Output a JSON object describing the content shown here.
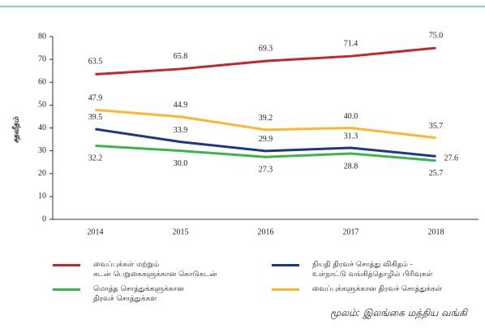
{
  "chart_data": {
    "type": "line",
    "y_label": "சதவீதம்",
    "categories": [
      "2014",
      "2015",
      "2016",
      "2017",
      "2018"
    ],
    "series": [
      {
        "name": "வைப்புக்கள் மற்றும்\nகடன் பெறுகைகளுக்கான கொடுகடன்",
        "color": "#c1272d",
        "values": [
          63.5,
          65.8,
          69.3,
          71.4,
          75.0
        ],
        "value_labels": [
          "63.5",
          "65.8",
          "69.3",
          "71.4",
          "75.0"
        ]
      },
      {
        "name": "நியதி திரவச் சொத்து விகிதம் -\nஉள்நாட்டு வங்கித்தொழில் பிரிவுகள்",
        "color": "#1f3685",
        "values": [
          39.5,
          33.9,
          29.9,
          31.3,
          27.6
        ],
        "value_labels": [
          "39.5",
          "33.9",
          "29.9",
          "31.3",
          "27.6"
        ]
      },
      {
        "name": "மொத்த சொத்துக்களுக்கான\nதிரவச் சொத்துக்கள",
        "color": "#3bb54a",
        "values": [
          32.2,
          30.0,
          27.3,
          28.8,
          25.7
        ],
        "value_labels": [
          "32.2",
          "30.0",
          "27.3",
          "28.8",
          "25.7"
        ]
      },
      {
        "name": "வைப்புக்களுக்கான திரவச் சொத்துக்கள்",
        "color": "#fbb731",
        "values": [
          47.9,
          44.9,
          39.2,
          40.0,
          35.7
        ],
        "value_labels": [
          "47.9",
          "44.9",
          "39.2",
          "40.0",
          "35.7"
        ]
      }
    ],
    "ylim": [
      0,
      80
    ],
    "yticks": [
      0,
      10,
      20,
      30,
      40,
      50,
      60,
      70,
      80
    ],
    "grid": false,
    "source": "மூலம்: இலங்கை மத்திய வங்கி"
  }
}
